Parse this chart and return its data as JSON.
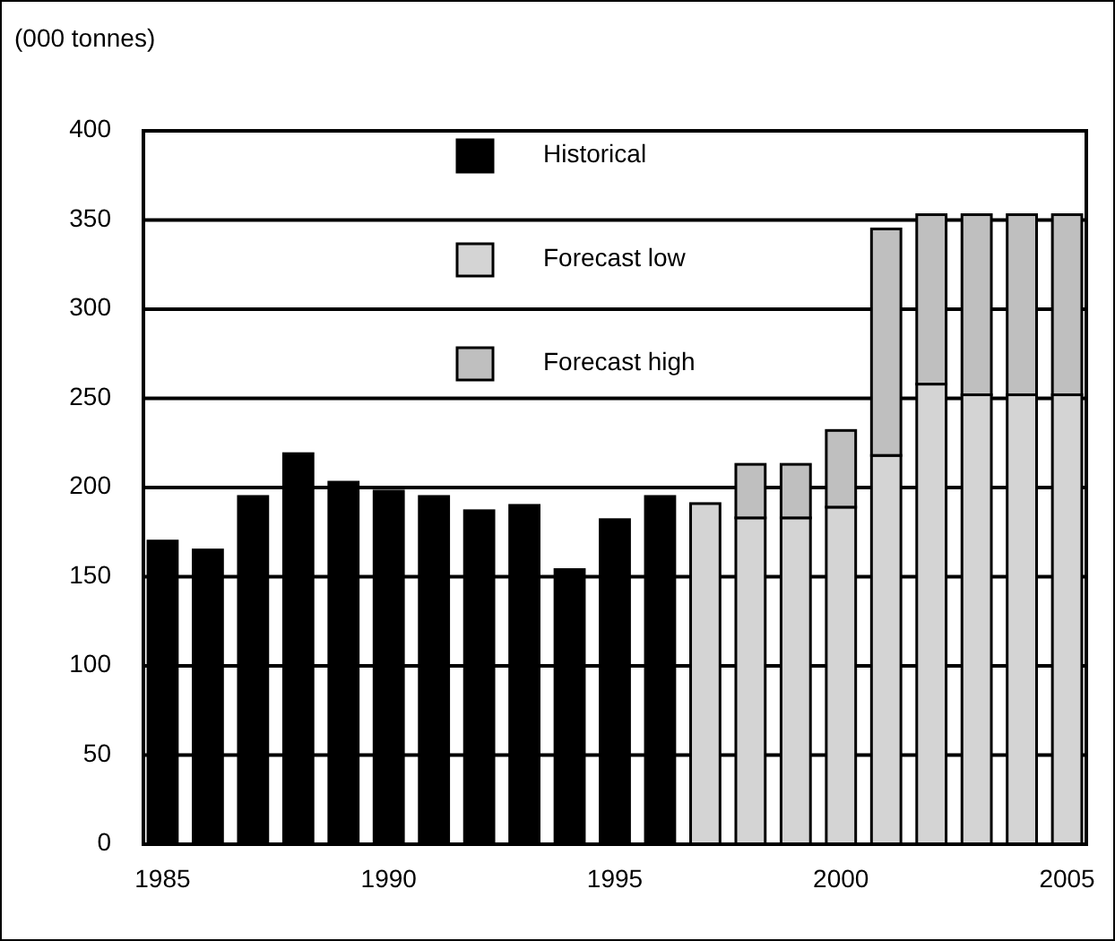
{
  "chart_data": {
    "type": "bar",
    "ylabel": "(000 tonnes)",
    "stacked": true,
    "categories": [
      "1985",
      null,
      null,
      null,
      null,
      "1990",
      null,
      null,
      null,
      null,
      "1995",
      null,
      null,
      null,
      null,
      "2000",
      null,
      null,
      null,
      null,
      "2005"
    ],
    "series": [
      {
        "name": "Historical",
        "color": "#000000",
        "values": [
          170,
          165,
          195,
          219,
          203,
          198,
          195,
          187,
          190,
          154,
          182,
          195,
          null,
          null,
          null,
          null,
          null,
          null,
          null,
          null,
          null
        ]
      },
      {
        "name": "Forecast low",
        "color": "#d4d4d4",
        "values": [
          null,
          null,
          null,
          null,
          null,
          null,
          null,
          null,
          null,
          null,
          null,
          null,
          191,
          183,
          183,
          189,
          218,
          258,
          252,
          252,
          252
        ]
      },
      {
        "name": "Forecast high",
        "color": "#bfbfbf",
        "values": [
          null,
          null,
          null,
          null,
          null,
          null,
          null,
          null,
          null,
          null,
          null,
          null,
          null,
          30,
          30,
          43,
          127,
          95,
          101,
          101,
          101
        ]
      }
    ],
    "ylim": [
      0,
      400
    ],
    "yticks": [
      0,
      50,
      100,
      150,
      200,
      250,
      300,
      350,
      400
    ],
    "grid": "y",
    "legend": "top"
  }
}
